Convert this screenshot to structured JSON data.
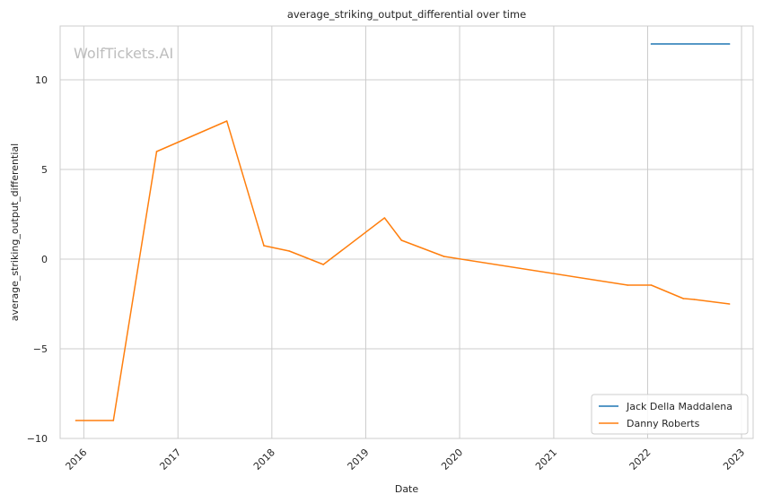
{
  "chart_data": {
    "type": "line",
    "title": "average_striking_output_differential over time",
    "xlabel": "Date",
    "ylabel": "average_striking_output_differential",
    "watermark": "WolfTickets.AI",
    "x_axis": "date",
    "xlim": [
      "2015-10-01",
      "2023-02-15"
    ],
    "ylim": [
      -10,
      13
    ],
    "x_ticks": [
      "2016",
      "2017",
      "2018",
      "2019",
      "2020",
      "2021",
      "2022",
      "2023"
    ],
    "y_ticks": [
      -10,
      -5,
      0,
      5,
      10
    ],
    "y_tick_labels": [
      "−10",
      "−5",
      "0",
      "5",
      "10"
    ],
    "grid": true,
    "legend_position": "lower-right",
    "series": [
      {
        "name": "Jack Della Maddalena",
        "color": "#1f77b4",
        "points": [
          {
            "x": "2022-01-15",
            "y": 12.0
          },
          {
            "x": "2022-11-15",
            "y": 12.0
          }
        ]
      },
      {
        "name": "Danny Roberts",
        "color": "#ff7f0e",
        "points": [
          {
            "x": "2015-12-01",
            "y": -9.0
          },
          {
            "x": "2016-04-25",
            "y": -9.0
          },
          {
            "x": "2016-10-10",
            "y": 6.0
          },
          {
            "x": "2017-07-10",
            "y": 7.7
          },
          {
            "x": "2017-12-01",
            "y": 0.75
          },
          {
            "x": "2018-03-10",
            "y": 0.45
          },
          {
            "x": "2018-07-20",
            "y": -0.3
          },
          {
            "x": "2019-03-15",
            "y": 2.3
          },
          {
            "x": "2019-05-20",
            "y": 1.05
          },
          {
            "x": "2019-11-01",
            "y": 0.15
          },
          {
            "x": "2021-10-15",
            "y": -1.45
          },
          {
            "x": "2022-01-15",
            "y": -1.45
          },
          {
            "x": "2022-05-20",
            "y": -2.2
          },
          {
            "x": "2022-07-01",
            "y": -2.25
          },
          {
            "x": "2022-11-15",
            "y": -2.5
          }
        ]
      }
    ]
  }
}
